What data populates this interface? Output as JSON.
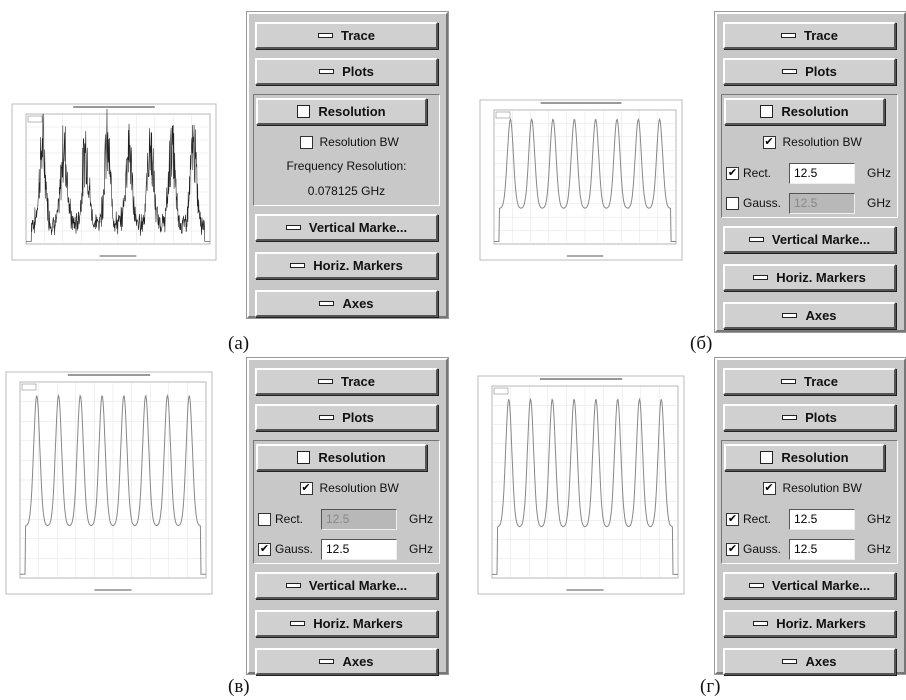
{
  "panels": [
    {
      "caption": "(а)",
      "buttons": {
        "trace": "Trace",
        "plots": "Plots",
        "resolution": "Resolution",
        "vertical": "Vertical Marke...",
        "horiz": "Horiz. Markers",
        "axes": "Axes"
      },
      "resolution_bw": {
        "label": "Resolution BW",
        "checked": false
      },
      "frequency_resolution": {
        "label": "Frequency Resolution:",
        "value": "0.078125 GHz"
      }
    },
    {
      "caption": "(б)",
      "buttons": {
        "trace": "Trace",
        "plots": "Plots",
        "resolution": "Resolution",
        "vertical": "Vertical Marke...",
        "horiz": "Horiz. Markers",
        "axes": "Axes"
      },
      "resolution_bw": {
        "label": "Resolution BW",
        "checked": true
      },
      "filters": [
        {
          "label": "Rect.",
          "checked": true,
          "value": 12.5,
          "unit": "GHz",
          "enabled": true
        },
        {
          "label": "Gauss.",
          "checked": false,
          "value": 12.5,
          "unit": "GHz",
          "enabled": false
        }
      ]
    },
    {
      "caption": "(в)",
      "buttons": {
        "trace": "Trace",
        "plots": "Plots",
        "resolution": "Resolution",
        "vertical": "Vertical Marke...",
        "horiz": "Horiz. Markers",
        "axes": "Axes"
      },
      "resolution_bw": {
        "label": "Resolution BW",
        "checked": true
      },
      "filters": [
        {
          "label": "Rect.",
          "checked": false,
          "value": 12.5,
          "unit": "GHz",
          "enabled": false
        },
        {
          "label": "Gauss.",
          "checked": true,
          "value": 12.5,
          "unit": "GHz",
          "enabled": true
        }
      ]
    },
    {
      "caption": "(г)",
      "buttons": {
        "trace": "Trace",
        "plots": "Plots",
        "resolution": "Resolution",
        "vertical": "Vertical Marke...",
        "horiz": "Horiz. Markers",
        "axes": "Axes"
      },
      "resolution_bw": {
        "label": "Resolution BW",
        "checked": true
      },
      "filters": [
        {
          "label": "Rect.",
          "checked": true,
          "value": 12.5,
          "unit": "GHz",
          "enabled": true
        },
        {
          "label": "Gauss.",
          "checked": true,
          "value": 12.5,
          "unit": "GHz",
          "enabled": true
        }
      ]
    }
  ]
}
